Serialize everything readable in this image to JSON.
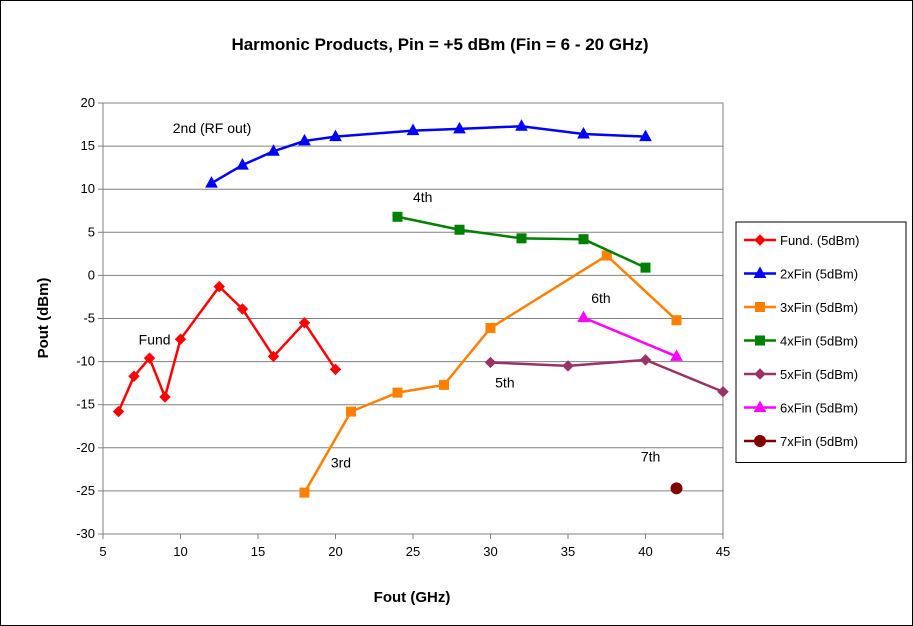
{
  "chart_data": {
    "type": "line",
    "title": "Harmonic Products, Pin = +5 dBm (Fin = 6 - 20 GHz)",
    "xlabel": "Fout (GHz)",
    "ylabel": "Pout (dBm)",
    "xlim": [
      5,
      45
    ],
    "ylim": [
      -30,
      20
    ],
    "xticks": [
      "5",
      "10",
      "15",
      "20",
      "25",
      "30",
      "35",
      "40",
      "45"
    ],
    "yticks": [
      "20",
      "15",
      "10",
      "5",
      "0",
      "-5",
      "-10",
      "-15",
      "-20",
      "-25",
      "-30"
    ],
    "grid": "horizontal",
    "legend_position": "right",
    "series": [
      {
        "name": "Fund. (5dBm)",
        "color": "#FF0000",
        "marker": "diamond",
        "x": [
          6,
          7,
          8,
          9,
          10,
          12.5,
          14,
          16,
          18,
          20
        ],
        "y": [
          -15.8,
          -11.7,
          -9.6,
          -14.1,
          -7.4,
          -1.3,
          -3.9,
          -9.4,
          -5.5,
          -10.9
        ]
      },
      {
        "name": "2xFin (5dBm)",
        "color": "#0000FF",
        "marker": "triangle",
        "x": [
          12,
          14,
          16,
          18,
          20,
          25,
          28,
          32,
          36,
          40
        ],
        "y": [
          10.7,
          12.8,
          14.4,
          15.6,
          16.1,
          16.8,
          17.0,
          17.3,
          16.4,
          16.1
        ]
      },
      {
        "name": "3xFin (5dBm)",
        "color": "#FF8000",
        "marker": "square",
        "x": [
          18,
          21,
          24,
          27,
          30,
          37.5,
          42
        ],
        "y": [
          -25.2,
          -15.8,
          -13.6,
          -12.7,
          -6.1,
          2.3,
          -5.2
        ]
      },
      {
        "name": "4xFin (5dBm)",
        "color": "#008000",
        "marker": "square",
        "x": [
          24,
          28,
          32,
          36,
          40
        ],
        "y": [
          6.8,
          5.3,
          4.3,
          4.2,
          0.9
        ]
      },
      {
        "name": "5xFin (5dBm)",
        "color": "#993366",
        "marker": "diamond",
        "x": [
          30,
          35,
          40,
          45
        ],
        "y": [
          -10.1,
          -10.5,
          -9.8,
          -13.5
        ]
      },
      {
        "name": "6xFin (5dBm)",
        "color": "#FF00FF",
        "marker": "triangle",
        "x": [
          36,
          42
        ],
        "y": [
          -4.9,
          -9.4
        ]
      },
      {
        "name": "7xFin (5dBm)",
        "color": "#800000",
        "marker": "circle",
        "x": [
          42
        ],
        "y": [
          -24.7
        ]
      }
    ],
    "annotations": [
      {
        "text": "2nd (RF out)",
        "x": 9.5,
        "y": 16.5
      },
      {
        "text": "4th",
        "x": 25,
        "y": 8.5
      },
      {
        "text": "6th",
        "x": 36.5,
        "y": -3.2
      },
      {
        "text": "Fund",
        "x": 7.3,
        "y": -8.0
      },
      {
        "text": "5th",
        "x": 30.3,
        "y": -13.0
      },
      {
        "text": "3rd",
        "x": 19.7,
        "y": -22.3
      },
      {
        "text": "7th",
        "x": 39.7,
        "y": -21.6
      }
    ]
  }
}
